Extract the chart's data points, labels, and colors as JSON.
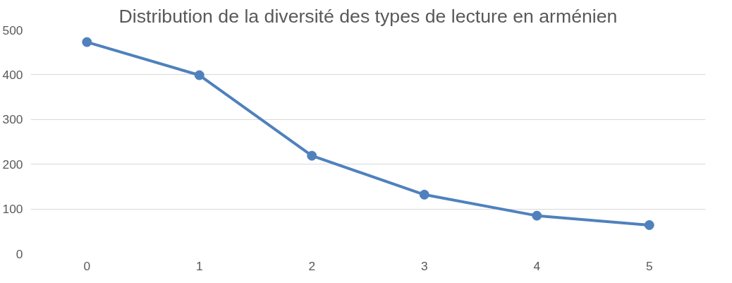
{
  "chart_data": {
    "type": "line",
    "title": "Distribution de la diversité des types de lecture en arménien",
    "categories": [
      "0",
      "1",
      "2",
      "3",
      "4",
      "5"
    ],
    "series": [
      {
        "color": "#4f81bd",
        "values": [
          473,
          399,
          219,
          132,
          85,
          64
        ]
      }
    ],
    "ylim": [
      0,
      500
    ],
    "yticks": [
      0,
      100,
      200,
      300,
      400,
      500
    ],
    "grid": "y",
    "marker": "circle",
    "line_style": "solid"
  }
}
